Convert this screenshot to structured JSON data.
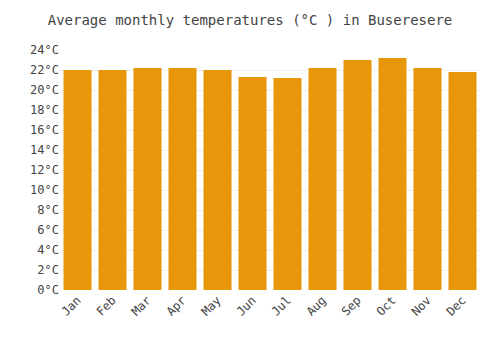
{
  "chart_data": {
    "type": "bar",
    "title": "Average monthly temperatures (°C ) in Buseresere",
    "categories": [
      "Jan",
      "Feb",
      "Mar",
      "Apr",
      "May",
      "Jun",
      "Jul",
      "Aug",
      "Sep",
      "Oct",
      "Nov",
      "Dec"
    ],
    "values": [
      22.0,
      22.0,
      22.2,
      22.2,
      22.0,
      21.3,
      21.2,
      22.2,
      23.0,
      23.2,
      22.2,
      21.8
    ],
    "color": "#E8960A",
    "ylim": [
      0,
      24
    ],
    "yticks": [
      {
        "value": 0,
        "label": "0°C"
      },
      {
        "value": 2,
        "label": "2°C"
      },
      {
        "value": 4,
        "label": "4°C"
      },
      {
        "value": 6,
        "label": "6°C"
      },
      {
        "value": 8,
        "label": "8°C"
      },
      {
        "value": 10,
        "label": "10°C"
      },
      {
        "value": 12,
        "label": "12°C"
      },
      {
        "value": 14,
        "label": "14°C"
      },
      {
        "value": 16,
        "label": "16°C"
      },
      {
        "value": 18,
        "label": "18°C"
      },
      {
        "value": 20,
        "label": "20°C"
      },
      {
        "value": 22,
        "label": "22°C"
      },
      {
        "value": 24,
        "label": "24°C"
      }
    ],
    "grid": true
  }
}
